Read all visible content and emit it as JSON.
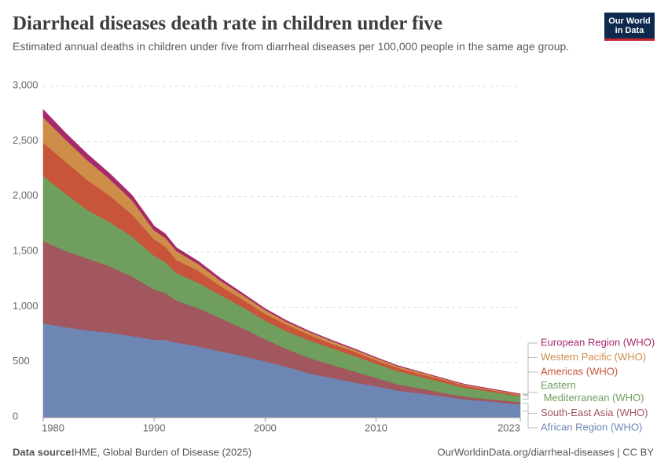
{
  "chart_data": {
    "type": "stacked_area",
    "title": "Diarrheal diseases death rate in children under five",
    "subtitle": "Estimated annual deaths in children under five from diarrheal diseases per 100,000 people in the same age group.",
    "logo": "Our World in Data",
    "source_label": "Data source:",
    "source": "IHME, Global Burden of Disease (2025)",
    "link": "OurWorldinData.org/diarrheal-diseases | CC BY",
    "xlim": [
      1980,
      2023
    ],
    "xticks": [
      1980,
      1990,
      2000,
      2010,
      2023
    ],
    "ylim": [
      0,
      3000
    ],
    "yticks": [
      0,
      500,
      {
        "value": 1000,
        "label": "1,000"
      },
      {
        "value": 1500,
        "label": "1,500"
      },
      {
        "value": 2000,
        "label": "2,000"
      },
      {
        "value": 2500,
        "label": "2,500"
      },
      {
        "value": 3000,
        "label": "3,000"
      }
    ],
    "grid": true,
    "x": [
      1980,
      1982,
      1984,
      1986,
      1988,
      1990,
      1991,
      1992,
      1994,
      1996,
      1998,
      2000,
      2002,
      2004,
      2006,
      2008,
      2010,
      2012,
      2014,
      2016,
      2018,
      2020,
      2023
    ],
    "series": [
      {
        "name": "African Region (WHO)",
        "color": "#6d86b4",
        "values": [
          855,
          820,
          790,
          770,
          740,
          705,
          705,
          680,
          645,
          600,
          560,
          510,
          460,
          400,
          360,
          320,
          285,
          245,
          220,
          195,
          165,
          150,
          120
        ]
      },
      {
        "name": "South-East Asia (WHO)",
        "color": "#a2565e",
        "values": [
          745,
          690,
          650,
          600,
          540,
          455,
          425,
          380,
          345,
          300,
          250,
          200,
          160,
          140,
          120,
          100,
          75,
          55,
          45,
          30,
          25,
          20,
          20
        ]
      },
      {
        "name": "Eastern Mediterranean (WHO)",
        "color": "#6f9e5e",
        "values": [
          590,
          520,
          440,
          400,
          360,
          305,
          280,
          250,
          230,
          210,
          190,
          170,
          160,
          160,
          150,
          140,
          130,
          120,
          105,
          95,
          80,
          70,
          55
        ]
      },
      {
        "name": "Americas (WHO)",
        "color": "#c8553a",
        "values": [
          300,
          290,
          270,
          240,
          200,
          150,
          140,
          120,
          110,
          80,
          70,
          60,
          60,
          50,
          40,
          40,
          30,
          30,
          25,
          25,
          20,
          15,
          10
        ]
      },
      {
        "name": "Western Pacific (WHO)",
        "color": "#cf8d4a",
        "values": [
          230,
          200,
          180,
          150,
          130,
          80,
          80,
          80,
          60,
          50,
          40,
          35,
          25,
          25,
          25,
          20,
          20,
          15,
          15,
          10,
          10,
          10,
          7
        ]
      },
      {
        "name": "European Region (WHO)",
        "color": "#a52a6a",
        "values": [
          70,
          60,
          55,
          50,
          45,
          40,
          35,
          30,
          25,
          20,
          15,
          12,
          10,
          8,
          7,
          6,
          5,
          5,
          4,
          3,
          3,
          3,
          3
        ]
      }
    ]
  }
}
